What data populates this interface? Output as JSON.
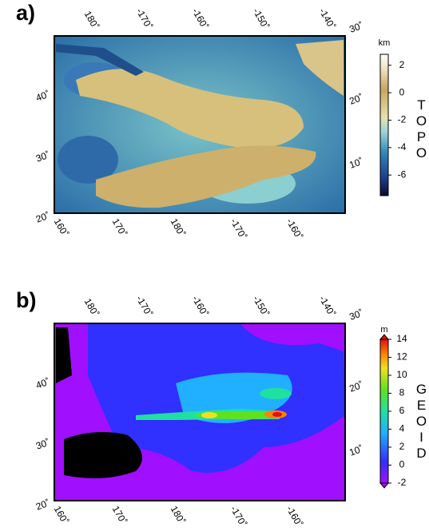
{
  "panels": [
    {
      "label": "a)",
      "top_ticks": [
        "180˚",
        "-170˚",
        "-160˚",
        "-150˚",
        "-140˚"
      ],
      "bottom_ticks": [
        "160˚",
        "170˚",
        "180˚",
        "-170˚",
        "-160˚"
      ],
      "left_ticks": [
        "40˚",
        "30˚",
        "20˚"
      ],
      "right_ticks": [
        "30˚",
        "20˚",
        "10˚"
      ],
      "colorbar": {
        "unit": "km",
        "title": "TOPO",
        "range": [
          -7.5,
          2.8
        ],
        "ticks": [
          2,
          0,
          -2,
          -4,
          -6
        ]
      }
    },
    {
      "label": "b)",
      "top_ticks": [
        "180˚",
        "-170˚",
        "-160˚",
        "-150˚",
        "-140˚"
      ],
      "bottom_ticks": [
        "160˚",
        "170˚",
        "180˚",
        "-170˚",
        "-160˚"
      ],
      "left_ticks": [
        "40˚",
        "30˚",
        "20˚"
      ],
      "right_ticks": [
        "30˚",
        "20˚",
        "10˚"
      ],
      "colorbar": {
        "unit": "m",
        "title": "GEOID",
        "range": [
          -2,
          14
        ],
        "ticks": [
          14,
          12,
          10,
          8,
          6,
          4,
          2,
          0,
          -2
        ]
      }
    }
  ]
}
